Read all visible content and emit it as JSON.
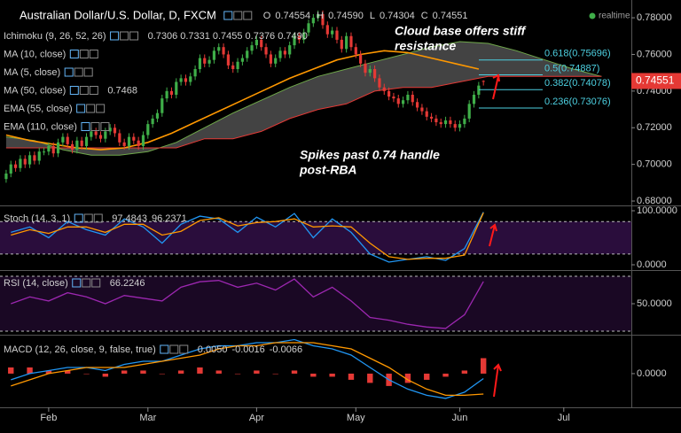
{
  "chart_data": [
    {
      "type": "candlestick",
      "title": "Australian Dollar/U.S. Dollar, D, FXCM",
      "status": "realtime",
      "ohlc_legend": [
        {
          "name": "O",
          "value": 0.74554
        },
        {
          "name": "H",
          "value": 0.7459,
          "label": "0.74590"
        },
        {
          "name": "L",
          "value": 0.74304
        },
        {
          "name": "C",
          "value": 0.74551
        }
      ],
      "up_color": "#3fae49",
      "down_color": "#e53935",
      "xlim": [
        10.7,
        144.3
      ],
      "xticks": [
        {
          "value": 21,
          "label": "Feb"
        },
        {
          "value": 42,
          "label": "Mar"
        },
        {
          "value": 65,
          "label": "Apr"
        },
        {
          "value": 86,
          "label": "May"
        },
        {
          "value": 108,
          "label": "Jun"
        },
        {
          "value": 130,
          "label": "Jul"
        }
      ],
      "ylim": [
        0.6776,
        0.7897
      ],
      "yticks": [
        {
          "value": 0.68,
          "label": "0.68000"
        },
        {
          "value": 0.7,
          "label": "0.70000"
        },
        {
          "value": 0.72,
          "label": "0.72000"
        },
        {
          "value": 0.74,
          "label": "0.74000"
        },
        {
          "value": 0.76,
          "label": "0.76000"
        },
        {
          "value": 0.78,
          "label": "0.78000"
        }
      ],
      "x": [
        12,
        13,
        14,
        15,
        16,
        17,
        18,
        19,
        20,
        21,
        22,
        23,
        24,
        25,
        26,
        27,
        28,
        29,
        30,
        31,
        32,
        33,
        34,
        35,
        36,
        37,
        38,
        39,
        40,
        41,
        42,
        43,
        44,
        45,
        46,
        47,
        48,
        49,
        50,
        51,
        52,
        53,
        54,
        55,
        56,
        57,
        58,
        59,
        60,
        61,
        62,
        63,
        64,
        65,
        66,
        67,
        68,
        69,
        70,
        71,
        72,
        73,
        74,
        75,
        76,
        77,
        78,
        79,
        80,
        81,
        82,
        83,
        84,
        85,
        86,
        87,
        88,
        89,
        90,
        91,
        92,
        93,
        94,
        95,
        96,
        97,
        98,
        99,
        100,
        101,
        102,
        103,
        104,
        105,
        106,
        107,
        108,
        109,
        110,
        111,
        112,
        113
      ],
      "open": [
        0.692,
        0.695,
        0.7,
        0.698,
        0.703,
        0.7,
        0.705,
        0.702,
        0.707,
        0.707,
        0.71,
        0.706,
        0.712,
        0.715,
        0.711,
        0.708,
        0.713,
        0.71,
        0.715,
        0.718,
        0.716,
        0.714,
        0.718,
        0.72,
        0.717,
        0.712,
        0.71,
        0.715,
        0.713,
        0.71,
        0.716,
        0.722,
        0.725,
        0.728,
        0.736,
        0.74,
        0.738,
        0.745,
        0.747,
        0.745,
        0.748,
        0.752,
        0.758,
        0.755,
        0.757,
        0.762,
        0.764,
        0.76,
        0.754,
        0.752,
        0.756,
        0.758,
        0.762,
        0.765,
        0.768,
        0.764,
        0.76,
        0.755,
        0.758,
        0.762,
        0.76,
        0.765,
        0.77,
        0.768,
        0.772,
        0.777,
        0.78,
        0.782,
        0.776,
        0.771,
        0.773,
        0.768,
        0.763,
        0.77,
        0.764,
        0.76,
        0.755,
        0.75,
        0.752,
        0.747,
        0.742,
        0.74,
        0.737,
        0.736,
        0.733,
        0.735,
        0.738,
        0.734,
        0.731,
        0.729,
        0.726,
        0.725,
        0.723,
        0.722,
        0.724,
        0.722,
        0.72,
        0.722,
        0.725,
        0.733,
        0.738,
        0.74554
      ],
      "high": [
        0.697,
        0.702,
        0.702,
        0.705,
        0.705,
        0.707,
        0.707,
        0.709,
        0.709,
        0.712,
        0.712,
        0.714,
        0.717,
        0.717,
        0.713,
        0.715,
        0.715,
        0.717,
        0.72,
        0.72,
        0.718,
        0.72,
        0.722,
        0.722,
        0.719,
        0.714,
        0.717,
        0.717,
        0.715,
        0.718,
        0.724,
        0.727,
        0.73,
        0.738,
        0.742,
        0.742,
        0.747,
        0.749,
        0.749,
        0.75,
        0.754,
        0.76,
        0.76,
        0.759,
        0.764,
        0.766,
        0.766,
        0.762,
        0.756,
        0.758,
        0.76,
        0.764,
        0.767,
        0.77,
        0.77,
        0.766,
        0.762,
        0.76,
        0.764,
        0.764,
        0.767,
        0.772,
        0.772,
        0.774,
        0.779,
        0.782,
        0.784,
        0.784,
        0.778,
        0.775,
        0.775,
        0.77,
        0.772,
        0.772,
        0.766,
        0.762,
        0.757,
        0.754,
        0.754,
        0.749,
        0.744,
        0.742,
        0.739,
        0.738,
        0.737,
        0.74,
        0.74,
        0.736,
        0.733,
        0.731,
        0.728,
        0.727,
        0.725,
        0.726,
        0.726,
        0.724,
        0.724,
        0.727,
        0.735,
        0.74,
        0.745,
        0.7459
      ],
      "low": [
        0.69,
        0.693,
        0.696,
        0.696,
        0.698,
        0.698,
        0.7,
        0.7,
        0.705,
        0.705,
        0.704,
        0.704,
        0.71,
        0.709,
        0.706,
        0.706,
        0.708,
        0.708,
        0.713,
        0.714,
        0.712,
        0.712,
        0.716,
        0.715,
        0.71,
        0.708,
        0.708,
        0.711,
        0.708,
        0.708,
        0.714,
        0.72,
        0.723,
        0.726,
        0.734,
        0.736,
        0.736,
        0.743,
        0.743,
        0.743,
        0.746,
        0.75,
        0.753,
        0.753,
        0.755,
        0.76,
        0.758,
        0.752,
        0.75,
        0.75,
        0.754,
        0.756,
        0.76,
        0.763,
        0.762,
        0.758,
        0.753,
        0.753,
        0.756,
        0.758,
        0.758,
        0.763,
        0.766,
        0.766,
        0.77,
        0.775,
        0.778,
        0.774,
        0.769,
        0.769,
        0.766,
        0.761,
        0.761,
        0.762,
        0.758,
        0.753,
        0.748,
        0.748,
        0.745,
        0.74,
        0.738,
        0.735,
        0.734,
        0.731,
        0.731,
        0.733,
        0.732,
        0.729,
        0.727,
        0.724,
        0.723,
        0.721,
        0.72,
        0.72,
        0.72,
        0.718,
        0.718,
        0.72,
        0.723,
        0.731,
        0.736,
        0.74304
      ],
      "close": [
        0.695,
        0.7,
        0.698,
        0.703,
        0.7,
        0.705,
        0.702,
        0.707,
        0.707,
        0.71,
        0.706,
        0.712,
        0.715,
        0.711,
        0.708,
        0.713,
        0.71,
        0.715,
        0.718,
        0.716,
        0.714,
        0.718,
        0.72,
        0.717,
        0.712,
        0.71,
        0.715,
        0.713,
        0.71,
        0.716,
        0.722,
        0.725,
        0.728,
        0.736,
        0.74,
        0.738,
        0.745,
        0.747,
        0.745,
        0.748,
        0.752,
        0.758,
        0.755,
        0.757,
        0.762,
        0.764,
        0.76,
        0.754,
        0.752,
        0.756,
        0.758,
        0.762,
        0.765,
        0.768,
        0.764,
        0.76,
        0.755,
        0.758,
        0.762,
        0.76,
        0.765,
        0.77,
        0.768,
        0.772,
        0.777,
        0.78,
        0.782,
        0.776,
        0.771,
        0.773,
        0.768,
        0.763,
        0.77,
        0.764,
        0.76,
        0.755,
        0.75,
        0.752,
        0.747,
        0.742,
        0.74,
        0.737,
        0.736,
        0.733,
        0.735,
        0.738,
        0.734,
        0.731,
        0.729,
        0.726,
        0.725,
        0.723,
        0.722,
        0.724,
        0.722,
        0.72,
        0.722,
        0.725,
        0.733,
        0.738,
        0.743,
        0.74551
      ],
      "price_color": "#e53935",
      "indicators": [
        {
          "name": "Ichimoku (9, 26, 52, 26)",
          "legend_values": [
            {
              "value": 0.7306,
              "color": "#ffd600"
            },
            {
              "value": 0.7331,
              "color": "#e53935"
            },
            {
              "value": 0.7455,
              "color": "#7cb342"
            },
            {
              "value": 0.7376,
              "color": "#7cb342"
            },
            {
              "value": 0.749,
              "label": "0.7490",
              "color": "#e53935"
            }
          ],
          "cloud_color": "#5a5a5a",
          "span_a": {
            "color": "#6fa84a",
            "x": [
              12,
              18,
              24,
              30,
              36,
              42,
              48,
              54,
              60,
              66,
              72,
              78,
              84,
              90,
              96,
              102,
              108,
              114,
              120,
              126,
              132,
              138
            ],
            "values": [
              0.715,
              0.713,
              0.708,
              0.705,
              0.705,
              0.707,
              0.712,
              0.72,
              0.728,
              0.735,
              0.742,
              0.748,
              0.752,
              0.756,
              0.76,
              0.764,
              0.767,
              0.766,
              0.762,
              0.757,
              0.752,
              0.748
            ]
          },
          "span_b": {
            "color": "#e53935",
            "x": [
              12,
              18,
              24,
              30,
              36,
              42,
              48,
              54,
              60,
              66,
              72,
              78,
              84,
              90,
              96,
              102,
              108,
              114,
              120,
              126,
              132,
              138
            ],
            "values": [
              0.709,
              0.709,
              0.709,
              0.709,
              0.709,
              0.709,
              0.709,
              0.714,
              0.714,
              0.718,
              0.725,
              0.73,
              0.733,
              0.74,
              0.742,
              0.742,
              0.745,
              0.748,
              0.748,
              0.748,
              0.748,
              0.748
            ]
          }
        },
        {
          "name": "MA (10, close)"
        },
        {
          "name": "MA (5, close)"
        },
        {
          "name": "MA (50, close)",
          "legend_values": [
            {
              "value": 0.7468,
              "color": "#ff9800"
            }
          ],
          "color": "#ff9800",
          "x": [
            12,
            17,
            22,
            27,
            32,
            37,
            42,
            47,
            52,
            57,
            62,
            67,
            72,
            77,
            82,
            87,
            92,
            97,
            102,
            107,
            112
          ],
          "values": [
            0.716,
            0.713,
            0.711,
            0.709,
            0.708,
            0.709,
            0.712,
            0.717,
            0.723,
            0.729,
            0.735,
            0.741,
            0.747,
            0.752,
            0.757,
            0.76,
            0.762,
            0.761,
            0.758,
            0.755,
            0.752
          ]
        },
        {
          "name": "EMA (55, close)"
        },
        {
          "name": "EMA (110, close)"
        }
      ],
      "annotations": [
        {
          "lines": [
            "Cloud base offers stiff",
            "resistance"
          ]
        },
        {
          "lines": [
            "Spikes past 0.74 handle",
            "post-RBA"
          ]
        }
      ],
      "fib_levels": [
        {
          "label": "0.618(0.75696)",
          "value": 0.75696
        },
        {
          "label": "0.5(0.74887)",
          "value": 0.74887
        },
        {
          "label": "0.382(0.74078)",
          "value": 0.74078
        },
        {
          "label": "0.236(0.73076)",
          "value": 0.73076
        }
      ],
      "fib_color": "#4dd0e1"
    },
    {
      "type": "line",
      "title": "Stoch (14, 3, 1)",
      "ylim": [
        -9.8,
        108.2
      ],
      "yticks": [
        {
          "value": 100,
          "label": "100.0000"
        },
        {
          "value": 0,
          "label": "0.0000"
        }
      ],
      "bands": [
        20,
        80
      ],
      "band_color": "#2a0d3c",
      "x": [
        13,
        17,
        21,
        25,
        29,
        33,
        37,
        41,
        45,
        49,
        53,
        57,
        61,
        65,
        69,
        73,
        77,
        81,
        85,
        89,
        93,
        97,
        101,
        105,
        109,
        113
      ],
      "series": [
        {
          "color": "#2196f3",
          "values": [
            60,
            70,
            50,
            80,
            65,
            55,
            85,
            70,
            40,
            75,
            90,
            85,
            60,
            88,
            70,
            95,
            50,
            85,
            60,
            20,
            5,
            10,
            15,
            8,
            30,
            97.4843
          ]
        },
        {
          "color": "#ff9800",
          "values": [
            55,
            65,
            58,
            70,
            70,
            60,
            75,
            75,
            55,
            62,
            82,
            87,
            72,
            78,
            80,
            85,
            70,
            72,
            70,
            40,
            15,
            10,
            12,
            12,
            18,
            96.2371
          ]
        }
      ]
    },
    {
      "type": "line",
      "title": "RSI (14, close)",
      "ylim": [
        27.4,
        73.9
      ],
      "yticks": [
        {
          "value": 50,
          "label": "50.0000"
        }
      ],
      "bands": [
        30,
        70
      ],
      "band_color": "#1a0824",
      "x": [
        13,
        17,
        21,
        25,
        29,
        33,
        37,
        41,
        45,
        49,
        53,
        57,
        61,
        65,
        69,
        73,
        77,
        81,
        85,
        89,
        93,
        97,
        101,
        105,
        109,
        113
      ],
      "series": [
        {
          "color": "#9c27b0",
          "values": [
            50,
            55,
            52,
            58,
            55,
            50,
            56,
            54,
            52,
            62,
            66,
            67,
            62,
            65,
            60,
            68,
            55,
            62,
            52,
            40,
            38,
            35,
            33,
            32,
            42,
            66.2246
          ]
        }
      ]
    },
    {
      "type": "macd",
      "title": "MACD (12, 26, close, 9, false, true)",
      "ylim": [
        -0.0109,
        0.0123
      ],
      "yticks": [
        {
          "value": 0,
          "label": "0.0000"
        }
      ],
      "x": [
        13,
        17,
        21,
        25,
        29,
        33,
        37,
        41,
        45,
        49,
        53,
        57,
        61,
        65,
        69,
        73,
        77,
        81,
        85,
        89,
        93,
        97,
        101,
        105,
        109,
        113
      ],
      "series": [
        {
          "kind": "histogram",
          "color": "#e53935",
          "values": [
            0.002,
            0.002,
            0.001,
            0.001,
            0,
            -0.001,
            0.001,
            0.001,
            0,
            0.001,
            0.002,
            0.001,
            0,
            0.001,
            0,
            0.001,
            -0.001,
            -0.001,
            -0.002,
            -0.003,
            -0.004,
            -0.003,
            -0.002,
            -0.001,
            0.001,
            0.005
          ],
          "value_labels": {
            "25": "0.0050"
          }
        },
        {
          "color": "#2196f3",
          "values": [
            -0.002,
            0,
            0.001,
            0.002,
            0.002,
            0.001,
            0.003,
            0.004,
            0.004,
            0.006,
            0.008,
            0.009,
            0.009,
            0.01,
            0.01,
            0.011,
            0.009,
            0.008,
            0.006,
            0.002,
            -0.002,
            -0.005,
            -0.007,
            -0.008,
            -0.006,
            -0.0016
          ]
        },
        {
          "color": "#ff9800",
          "values": [
            -0.004,
            -0.002,
            0,
            0.001,
            0.002,
            0.002,
            0.002,
            0.003,
            0.004,
            0.005,
            0.006,
            0.008,
            0.009,
            0.009,
            0.01,
            0.01,
            0.01,
            0.009,
            0.008,
            0.005,
            0.002,
            -0.002,
            -0.005,
            -0.007,
            -0.007,
            -0.0066
          ]
        }
      ]
    }
  ]
}
